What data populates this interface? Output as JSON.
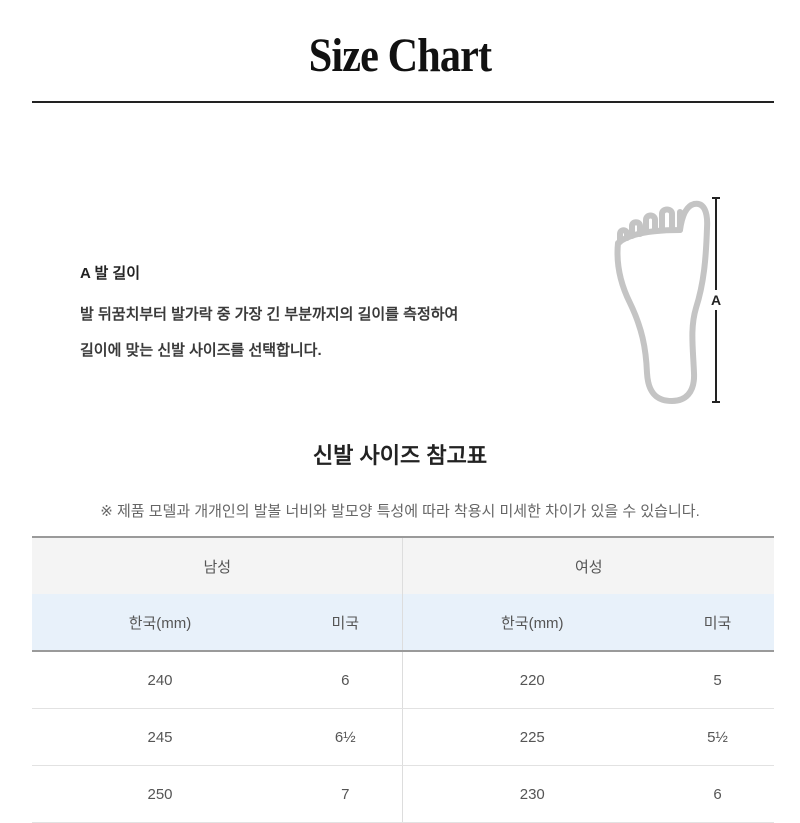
{
  "title": "Size Chart",
  "measure": {
    "heading": "A 발 길이",
    "lines": [
      "발 뒤꿈치부터 발가락 중 가장 긴 부분까지의 길이를 측정하여",
      "길이에 맞는 신발 사이즈를 선택합니다."
    ],
    "diagram_label": "A"
  },
  "table_title": "신발 사이즈 참고표",
  "note": "※ 제품 모델과 개개인의 발볼 너비와 발모양 특성에 따라 착용시 미세한 차이가 있을 수 있습니다.",
  "table": {
    "groups": [
      "남성",
      "여성"
    ],
    "columns": [
      "한국(mm)",
      "미국",
      "한국(mm)",
      "미국"
    ],
    "rows": [
      [
        "240",
        "6",
        "220",
        "5"
      ],
      [
        "245",
        "6½",
        "225",
        "5½"
      ],
      [
        "250",
        "7",
        "230",
        "6"
      ]
    ]
  },
  "colors": {
    "group_header_bg": "#f4f4f4",
    "sub_header_bg": "#e8f1fa",
    "foot_outline": "#c4c4c4"
  }
}
